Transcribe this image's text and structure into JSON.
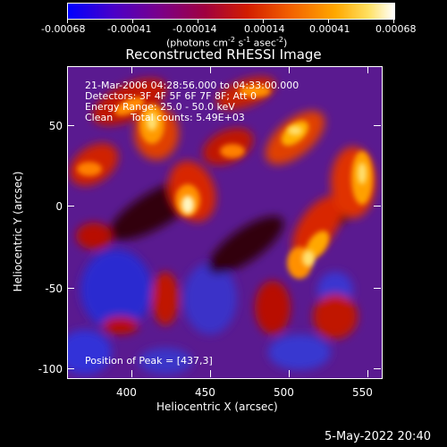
{
  "colorbar": {
    "ticks": [
      "-0.00068",
      "-0.00041",
      "-0.00014",
      "0.00014",
      "0.00041",
      "0.00068"
    ],
    "unit_base": "(photons cm",
    "unit_sup1": "-2",
    "unit_mid": " s",
    "unit_sup2": "-1",
    "unit_end": " asec",
    "unit_sup3": "-2",
    "unit_close": ")"
  },
  "title": "Reconstructed RHESSI Image",
  "overlay": {
    "line1": "21-Mar-2006 04:28:56.000 to 04:33:00.000",
    "line2": "Detectors: 3F 4F 5F 6F 7F 8F; Att 0",
    "line3": "Energy Range: 25.0 - 50.0 keV",
    "line4_a": "Clean",
    "line4_b": "Total counts: 5.49E+03",
    "peak": "Position of Peak = [437,3]"
  },
  "xaxis": {
    "label": "Heliocentric X (arcsec)",
    "ticks": [
      "400",
      "450",
      "500",
      "550"
    ]
  },
  "yaxis": {
    "label": "Heliocentric Y (arcsec)",
    "ticks": [
      "50",
      "0",
      "-50",
      "-100"
    ]
  },
  "footer": {
    "date": "5-May-2022 20:40"
  },
  "colors": {
    "cmap": [
      "#0000ff",
      "#4a00c8",
      "#7a008a",
      "#a00040",
      "#d21d00",
      "#f26000",
      "#ffa800",
      "#ffe060",
      "#ffffff"
    ]
  }
}
